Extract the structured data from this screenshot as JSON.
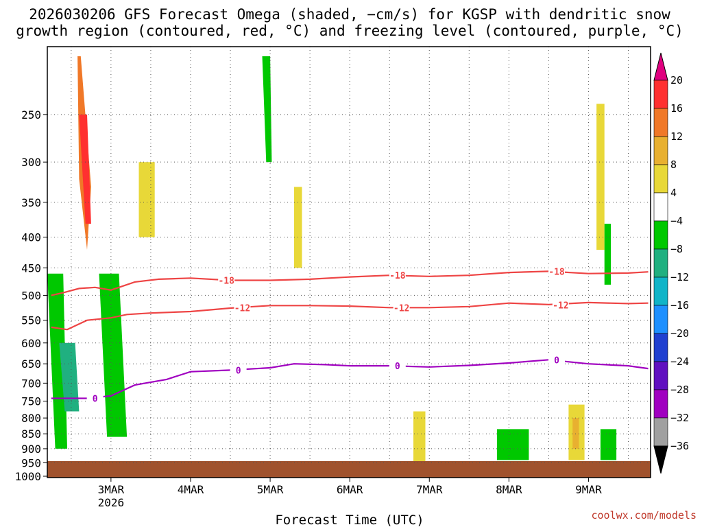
{
  "chart_data": {
    "type": "heatmap",
    "title_line1": "2026030206 GFS Forecast Omega (shaded, −cm/s) for KGSP with dendritic snow",
    "title_line2": "growth region (contoured, red, °C) and freezing level (contoured, purple, °C)",
    "xlabel": "Forecast Time (UTC)",
    "credit": "coolwx.com/models",
    "x_range": [
      "2026-03-02T06",
      "2026-03-09T18"
    ],
    "y_range_hPa": [
      1000,
      200
    ],
    "y_ticks": [
      250,
      300,
      350,
      400,
      450,
      500,
      550,
      600,
      650,
      700,
      750,
      800,
      850,
      900,
      950,
      1000
    ],
    "x_ticks": [
      {
        "label": "3MAR",
        "sub": "2026",
        "day": 3
      },
      {
        "label": "4MAR",
        "sub": "",
        "day": 4
      },
      {
        "label": "5MAR",
        "sub": "",
        "day": 5
      },
      {
        "label": "6MAR",
        "sub": "",
        "day": 6
      },
      {
        "label": "7MAR",
        "sub": "",
        "day": 7
      },
      {
        "label": "8MAR",
        "sub": "",
        "day": 8
      },
      {
        "label": "9MAR",
        "sub": "",
        "day": 9
      }
    ],
    "colorbar": {
      "labels": [
        "20",
        "16",
        "12",
        "8",
        "4",
        "−4",
        "−8",
        "−12",
        "−16",
        "−20",
        "−24",
        "−28",
        "−32",
        "−36"
      ],
      "colors": [
        "#e0007f",
        "#ff3030",
        "#f07828",
        "#e8b030",
        "#e8d838",
        "#ffffff",
        "#00c800",
        "#20b080",
        "#10b4c8",
        "#1e90ff",
        "#2040d0",
        "#6010c0",
        "#a000c0",
        "#a0a0a0",
        "#000000"
      ]
    },
    "contours": [
      {
        "label": "-18",
        "color": "#ee4444",
        "points": [
          [
            2.25,
            500
          ],
          [
            2.4,
            495
          ],
          [
            2.6,
            487
          ],
          [
            2.8,
            485
          ],
          [
            3.0,
            490
          ],
          [
            3.3,
            475
          ],
          [
            3.6,
            470
          ],
          [
            4.0,
            468
          ],
          [
            4.5,
            472
          ],
          [
            5.0,
            472
          ],
          [
            5.5,
            470
          ],
          [
            6.0,
            466
          ],
          [
            6.5,
            463
          ],
          [
            7.0,
            465
          ],
          [
            7.5,
            463
          ],
          [
            8.0,
            458
          ],
          [
            8.5,
            456
          ],
          [
            9.0,
            460
          ],
          [
            9.5,
            459
          ],
          [
            9.75,
            457
          ]
        ],
        "label_at": [
          [
            4.45,
            472
          ],
          [
            6.6,
            463
          ],
          [
            8.6,
            456
          ]
        ]
      },
      {
        "label": "-12",
        "color": "#ee4444",
        "points": [
          [
            2.25,
            565
          ],
          [
            2.45,
            570
          ],
          [
            2.7,
            550
          ],
          [
            3.0,
            545
          ],
          [
            3.2,
            538
          ],
          [
            3.5,
            535
          ],
          [
            4.0,
            532
          ],
          [
            4.5,
            525
          ],
          [
            5.0,
            520
          ],
          [
            5.5,
            520
          ],
          [
            6.0,
            521
          ],
          [
            6.5,
            524
          ],
          [
            7.0,
            524
          ],
          [
            7.5,
            522
          ],
          [
            8.0,
            515
          ],
          [
            8.5,
            518
          ],
          [
            9.0,
            514
          ],
          [
            9.5,
            516
          ],
          [
            9.75,
            515
          ]
        ],
        "label_at": [
          [
            4.65,
            524
          ],
          [
            6.65,
            524
          ],
          [
            8.65,
            519
          ]
        ]
      },
      {
        "label": "0",
        "color": "#a000c0",
        "points": [
          [
            2.25,
            742
          ],
          [
            2.7,
            742
          ],
          [
            3.0,
            735
          ],
          [
            3.3,
            705
          ],
          [
            3.7,
            690
          ],
          [
            4.0,
            670
          ],
          [
            4.5,
            666
          ],
          [
            5.0,
            660
          ],
          [
            5.3,
            650
          ],
          [
            5.7,
            652
          ],
          [
            6.0,
            655
          ],
          [
            6.5,
            655
          ],
          [
            7.0,
            658
          ],
          [
            7.5,
            654
          ],
          [
            8.0,
            648
          ],
          [
            8.5,
            640
          ],
          [
            9.0,
            650
          ],
          [
            9.5,
            655
          ],
          [
            9.75,
            662
          ]
        ],
        "label_at": [
          [
            2.8,
            742
          ],
          [
            4.6,
            666
          ],
          [
            6.6,
            655
          ],
          [
            8.6,
            640
          ]
        ]
      }
    ],
    "shaded_regions": [
      {
        "x": [
          2.58,
          2.62,
          2.75,
          2.7,
          2.6
        ],
        "p": [
          200,
          200,
          330,
          420,
          320
        ],
        "level": 12
      },
      {
        "x": [
          2.6,
          2.7,
          2.75,
          2.68
        ],
        "p": [
          250,
          250,
          380,
          380
        ],
        "level": 16
      },
      {
        "x": [
          2.2,
          2.4,
          2.45,
          2.3
        ],
        "p": [
          460,
          460,
          900,
          900
        ],
        "level": -8
      },
      {
        "x": [
          2.35,
          2.55,
          2.6,
          2.42
        ],
        "p": [
          600,
          600,
          780,
          780
        ],
        "level": -12
      },
      {
        "x": [
          2.95,
          3.08,
          3.12,
          3.0
        ],
        "p": [
          520,
          520,
          700,
          700
        ],
        "level": -12
      },
      {
        "x": [
          2.85,
          3.1,
          3.2,
          2.95
        ],
        "p": [
          460,
          460,
          860,
          860
        ],
        "level": -8
      },
      {
        "x": [
          4.9,
          5.0,
          5.02,
          4.95
        ],
        "p": [
          200,
          200,
          300,
          300
        ],
        "level": -8
      },
      {
        "x": [
          7.85,
          8.25,
          8.25,
          7.85
        ],
        "p": [
          835,
          835,
          940,
          940
        ],
        "level": -8
      },
      {
        "x": [
          9.15,
          9.35,
          9.35,
          9.15
        ],
        "p": [
          835,
          835,
          940,
          940
        ],
        "level": -8
      },
      {
        "x": [
          6.8,
          6.95,
          6.95,
          6.8
        ],
        "p": [
          780,
          780,
          950,
          950
        ],
        "level": 4
      },
      {
        "x": [
          8.75,
          8.95,
          8.95,
          8.75
        ],
        "p": [
          760,
          760,
          940,
          940
        ],
        "level": 4
      },
      {
        "x": [
          8.8,
          8.88,
          8.88,
          8.8
        ],
        "p": [
          800,
          800,
          900,
          900
        ],
        "level": 8
      },
      {
        "x": [
          3.35,
          3.55,
          3.55,
          3.35
        ],
        "p": [
          300,
          300,
          400,
          400
        ],
        "level": 4
      },
      {
        "x": [
          5.3,
          5.4,
          5.4,
          5.3
        ],
        "p": [
          330,
          330,
          450,
          450
        ],
        "level": 4
      },
      {
        "x": [
          9.1,
          9.2,
          9.2,
          9.1
        ],
        "p": [
          240,
          240,
          420,
          420
        ],
        "level": 4
      },
      {
        "x": [
          9.2,
          9.28,
          9.28,
          9.2
        ],
        "p": [
          380,
          380,
          480,
          480
        ],
        "level": -8
      }
    ]
  }
}
